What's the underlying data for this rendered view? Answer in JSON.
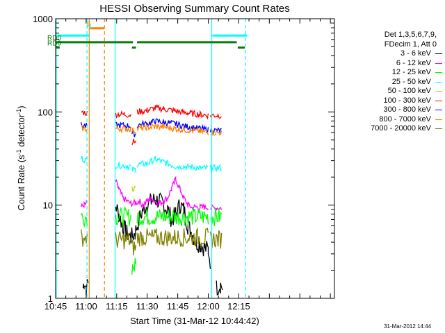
{
  "chart_data": {
    "type": "line",
    "title": "HESSI Observing Summary Count Rates",
    "xlabel": "Start Time (31-Mar-12 10:44:42)",
    "ylabel_main": "Count Rate (s",
    "ylabel_sup1": "-1",
    "ylabel_mid": " detector",
    "ylabel_sup2": "-1",
    "ylabel_end": ")",
    "y_scale": "log",
    "ylim": [
      1,
      1000
    ],
    "xlim_minutes": [
      645,
      782
    ],
    "x_ticks": [
      {
        "label": "10:45",
        "m": 645
      },
      {
        "label": "11:00",
        "m": 660
      },
      {
        "label": "11:15",
        "m": 675
      },
      {
        "label": "11:30",
        "m": 690
      },
      {
        "label": "11:45",
        "m": 705
      },
      {
        "label": "12:00",
        "m": 720
      },
      {
        "label": "12:15",
        "m": 735
      }
    ],
    "y_ticks": [
      {
        "label": "1",
        "v": 1
      },
      {
        "label": "10",
        "v": 10
      },
      {
        "label": "100",
        "v": 100
      },
      {
        "label": "1000",
        "v": 1000
      }
    ],
    "legend_placement": "right",
    "legend_header": [
      "Det 1,3,5,6,7,9,",
      "FDecim 1, Att 0"
    ],
    "series": [
      {
        "name": "3 - 6 keV",
        "color": "#000000",
        "segments": [
          [
            [
              658.5,
              1.3
            ],
            [
              659,
              1.5
            ],
            [
              660,
              1.3
            ],
            [
              661,
              1.4
            ]
          ],
          [
            [
              674.5,
              10
            ],
            [
              676,
              8
            ],
            [
              678,
              6
            ],
            [
              680,
              5
            ],
            [
              682,
              4.5
            ],
            [
              684,
              5
            ],
            [
              686,
              7
            ],
            [
              688,
              9
            ],
            [
              690,
              10
            ],
            [
              692,
              11
            ],
            [
              694,
              11.5
            ],
            [
              696,
              11
            ],
            [
              698,
              10
            ],
            [
              700,
              9
            ],
            [
              702,
              7
            ],
            [
              704,
              8
            ],
            [
              706,
              10
            ],
            [
              708,
              9
            ],
            [
              710,
              6
            ],
            [
              712,
              5
            ],
            [
              714,
              4
            ],
            [
              716,
              3.8
            ],
            [
              718,
              3.5
            ],
            [
              720,
              3.3
            ],
            [
              721,
              2.5
            ]
          ],
          [
            [
              724,
              1.3
            ],
            [
              726,
              1.4
            ],
            [
              727,
              1.3
            ]
          ]
        ]
      },
      {
        "name": "6 - 12 keV",
        "color": "#ff00ff",
        "segments": [
          [
            [
              657.5,
              9.5
            ],
            [
              659,
              10
            ],
            [
              660.5,
              10.5
            ]
          ],
          [
            [
              674.5,
              18
            ],
            [
              676,
              15
            ],
            [
              678,
              12
            ],
            [
              680,
              11
            ],
            [
              682,
              10.5
            ],
            [
              684,
              10.5
            ],
            [
              686,
              11
            ],
            [
              688,
              10
            ],
            [
              690,
              11
            ],
            [
              692,
              12
            ],
            [
              694,
              11
            ],
            [
              696,
              10.5
            ],
            [
              698,
              11
            ],
            [
              700,
              12
            ],
            [
              702,
              15
            ],
            [
              704,
              19
            ],
            [
              706,
              15
            ],
            [
              708,
              12
            ],
            [
              710,
              10
            ],
            [
              712,
              9.5
            ],
            [
              714,
              9.5
            ],
            [
              716,
              9.5
            ],
            [
              718,
              9.5
            ],
            [
              720,
              9.5
            ]
          ],
          [
            [
              721,
              9.3
            ],
            [
              724,
              9.3
            ],
            [
              726.5,
              9.3
            ]
          ]
        ]
      },
      {
        "name": "12 - 25 keV",
        "color": "#00ff00",
        "segments": [
          [
            [
              657.5,
              7.5
            ],
            [
              660.5,
              7.5
            ]
          ],
          [
            [
              674.5,
              7.5
            ],
            [
              682,
              7.5
            ]
          ],
          [
            [
              682.5,
              2.2
            ],
            [
              684.5,
              2.2
            ]
          ],
          [
            [
              685,
              7.5
            ],
            [
              720,
              7.5
            ]
          ],
          [
            [
              721,
              7.5
            ],
            [
              726.5,
              7.5
            ]
          ]
        ]
      },
      {
        "name": "25 - 50 keV",
        "color": "#00ffff",
        "segments": [
          [
            [
              657.5,
              32
            ],
            [
              660.5,
              30
            ]
          ],
          [
            [
              674.5,
              27
            ],
            [
              682,
              26
            ]
          ],
          [
            [
              682.5,
              24
            ],
            [
              684.5,
              24
            ]
          ],
          [
            [
              685,
              27
            ],
            [
              690,
              28
            ],
            [
              694,
              31
            ],
            [
              698,
              29
            ],
            [
              704,
              26
            ],
            [
              710,
              26
            ],
            [
              716,
              25
            ],
            [
              720,
              25
            ]
          ],
          [
            [
              721,
              25
            ],
            [
              726.5,
              25
            ]
          ]
        ]
      },
      {
        "name": "50 - 100 keV",
        "color": "#cccc00",
        "segments": [
          [
            [
              682.5,
              15
            ],
            [
              684.5,
              15
            ]
          ]
        ]
      },
      {
        "name": "100 - 300 keV",
        "color": "#ff0000",
        "segments": [
          [
            [
              657.5,
              100
            ],
            [
              660.5,
              97
            ]
          ],
          [
            [
              674.5,
              95
            ],
            [
              682,
              93
            ]
          ],
          [
            [
              682.5,
              48
            ],
            [
              684.5,
              48
            ]
          ],
          [
            [
              685,
              100
            ],
            [
              690,
              104
            ],
            [
              694,
              110
            ],
            [
              698,
              108
            ],
            [
              704,
              102
            ],
            [
              710,
              97
            ],
            [
              716,
              94
            ],
            [
              720,
              92
            ]
          ],
          [
            [
              721,
              92
            ],
            [
              726.5,
              92
            ]
          ]
        ]
      },
      {
        "name": "300 - 800 keV",
        "color": "#0000ff",
        "segments": [
          [
            [
              657.5,
              72
            ],
            [
              660.5,
              70
            ]
          ],
          [
            [
              674.5,
              72
            ],
            [
              682,
              71
            ]
          ],
          [
            [
              682.5,
              58
            ],
            [
              684.5,
              58
            ]
          ],
          [
            [
              685,
              72
            ],
            [
              690,
              75
            ],
            [
              694,
              79
            ],
            [
              698,
              78
            ],
            [
              704,
              74
            ],
            [
              710,
              69
            ],
            [
              716,
              66
            ],
            [
              720,
              64
            ]
          ],
          [
            [
              721,
              63
            ],
            [
              726.5,
              63
            ]
          ]
        ]
      },
      {
        "name": "800 - 7000 keV",
        "color": "#ff8000",
        "segments": [
          [
            [
              657.5,
              67
            ],
            [
              660.5,
              65
            ]
          ],
          [
            [
              674.5,
              66
            ],
            [
              682,
              66
            ]
          ],
          [
            [
              682.5,
              63
            ],
            [
              684.5,
              63
            ]
          ],
          [
            [
              685,
              66
            ],
            [
              690,
              68
            ],
            [
              694,
              70
            ],
            [
              698,
              69
            ],
            [
              704,
              66
            ],
            [
              710,
              64
            ],
            [
              716,
              62
            ],
            [
              720,
              60
            ]
          ],
          [
            [
              721,
              60
            ],
            [
              726.5,
              60
            ]
          ]
        ]
      },
      {
        "name": "7000 - 20000 keV",
        "color": "#808000",
        "segments": [
          [
            [
              657.5,
              4.5
            ],
            [
              660.5,
              4.5
            ]
          ],
          [
            [
              674.5,
              4.2
            ],
            [
              682,
              4.2
            ]
          ],
          [
            [
              682.5,
              3.5
            ],
            [
              684.5,
              3.5
            ]
          ],
          [
            [
              685,
              4.5
            ],
            [
              720,
              4.5
            ]
          ],
          [
            [
              721,
              4.3
            ],
            [
              726.5,
              4.3
            ]
          ]
        ]
      }
    ],
    "vertical_lines": [
      {
        "m": 645.3,
        "color": "#00ffff",
        "dashed": false
      },
      {
        "m": 660.4,
        "color": "#00ffff",
        "dashed": true
      },
      {
        "m": 661.5,
        "color": "#ff8000",
        "dashed": false
      },
      {
        "m": 669,
        "color": "#ff8000",
        "dashed": true
      },
      {
        "m": 674.2,
        "color": "#00ffff",
        "dashed": false
      },
      {
        "m": 721.7,
        "color": "#00ffff",
        "dashed": false
      },
      {
        "m": 738.3,
        "color": "#00ffff",
        "dashed": true
      }
    ],
    "flag_bars": [
      {
        "label": "",
        "color": "#00ffff",
        "v": 660,
        "from": 645,
        "to": 661.7
      },
      {
        "label": "",
        "color": "#00ffff",
        "v": 660,
        "from": 722,
        "to": 739
      },
      {
        "label": "RD0",
        "color": "#008000",
        "v": 560,
        "from": 645,
        "to": 683
      },
      {
        "label": "",
        "color": "#008000",
        "v": 560,
        "from": 685,
        "to": 734
      },
      {
        "label": "RD6",
        "color": "#008000",
        "v": 490,
        "from": 645,
        "to": 647
      },
      {
        "label": "",
        "color": "#008000",
        "v": 490,
        "from": 682.5,
        "to": 684.5
      },
      {
        "label": "",
        "color": "#008000",
        "v": 490,
        "from": 734.5,
        "to": 738
      },
      {
        "label": "S",
        "color": "#ff8000",
        "v": 790,
        "from": 661.5,
        "to": 669
      },
      {
        "label": "N",
        "color": "#00ffff",
        "v": 740,
        "from": 661.5,
        "to": 661.5
      }
    ],
    "footer_stamp": "31-Mar-2012 14:44"
  }
}
